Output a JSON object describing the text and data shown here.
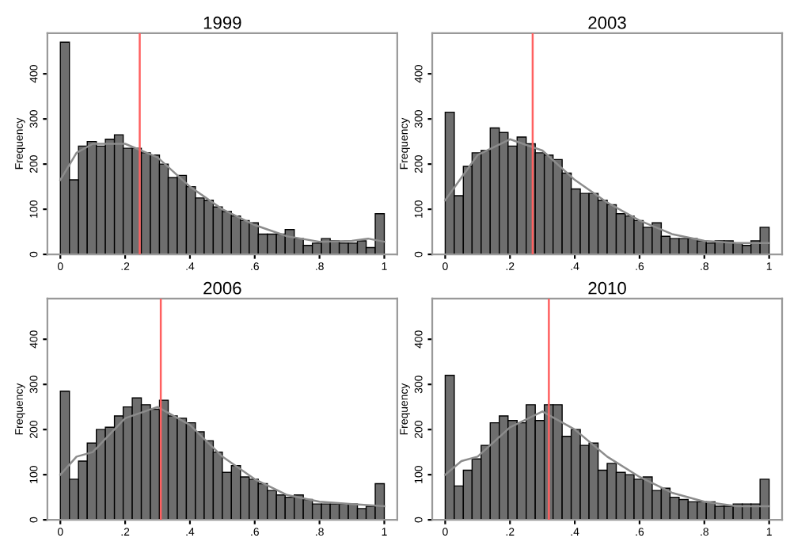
{
  "chart_data": [
    {
      "type": "histogram",
      "title": "1999",
      "ylabel": "Frequency",
      "xlim": [
        -0.04,
        1.04
      ],
      "ylim": [
        0,
        490
      ],
      "xticks": [
        0,
        {
          "value": 0.2,
          "label": ".2"
        },
        {
          "value": 0.4,
          "label": ".4"
        },
        {
          "value": 0.6,
          "label": ".6"
        },
        {
          "value": 0.8,
          "label": ".8"
        },
        1
      ],
      "yticks": [
        0,
        100,
        200,
        300,
        400
      ],
      "bins": [
        0,
        0.028,
        0.056,
        0.083,
        0.111,
        0.139,
        0.167,
        0.194,
        0.222,
        0.25,
        0.278,
        0.306,
        0.333,
        0.361,
        0.389,
        0.417,
        0.444,
        0.472,
        0.5,
        0.528,
        0.556,
        0.583,
        0.611,
        0.639,
        0.667,
        0.694,
        0.722,
        0.75,
        0.778,
        0.806,
        0.833,
        0.861,
        0.889,
        0.917,
        0.944,
        0.972,
        1
      ],
      "color": "#6e6e6e",
      "values": [
        470,
        165,
        240,
        250,
        240,
        255,
        265,
        235,
        235,
        225,
        220,
        200,
        170,
        175,
        150,
        125,
        120,
        105,
        95,
        85,
        75,
        70,
        45,
        45,
        45,
        55,
        35,
        20,
        25,
        35,
        30,
        25,
        25,
        30,
        15,
        90
      ],
      "series": [
        {
          "type": "line",
          "color": "#8c8c8c",
          "x": [
            0,
            0.05,
            0.1,
            0.2,
            0.3,
            0.4,
            0.5,
            0.6,
            0.7,
            0.8,
            0.9,
            0.95,
            1
          ],
          "values": [
            165,
            225,
            245,
            245,
            215,
            150,
            100,
            65,
            40,
            28,
            30,
            35,
            28
          ]
        }
      ],
      "ref_lines": [
        {
          "axis": "x",
          "value": 0.245,
          "color": "#ff6060"
        }
      ]
    },
    {
      "type": "histogram",
      "title": "2003",
      "ylabel": "Frequency",
      "xlim": [
        -0.04,
        1.04
      ],
      "ylim": [
        0,
        490
      ],
      "xticks": [
        0,
        {
          "value": 0.2,
          "label": ".2"
        },
        {
          "value": 0.4,
          "label": ".4"
        },
        {
          "value": 0.6,
          "label": ".6"
        },
        {
          "value": 0.8,
          "label": ".8"
        },
        1
      ],
      "yticks": [
        0,
        100,
        200,
        300,
        400
      ],
      "bins": [
        0,
        0.028,
        0.056,
        0.083,
        0.111,
        0.139,
        0.167,
        0.194,
        0.222,
        0.25,
        0.278,
        0.306,
        0.333,
        0.361,
        0.389,
        0.417,
        0.444,
        0.472,
        0.5,
        0.528,
        0.556,
        0.583,
        0.611,
        0.639,
        0.667,
        0.694,
        0.722,
        0.75,
        0.778,
        0.806,
        0.833,
        0.861,
        0.889,
        0.917,
        0.944,
        0.972,
        1
      ],
      "color": "#6e6e6e",
      "values": [
        315,
        130,
        195,
        225,
        230,
        280,
        270,
        240,
        260,
        245,
        225,
        220,
        210,
        180,
        145,
        135,
        135,
        120,
        110,
        90,
        85,
        75,
        60,
        70,
        40,
        35,
        35,
        35,
        30,
        25,
        30,
        30,
        25,
        20,
        30,
        60
      ],
      "series": [
        {
          "type": "line",
          "color": "#8c8c8c",
          "x": [
            0,
            0.05,
            0.1,
            0.2,
            0.3,
            0.4,
            0.5,
            0.6,
            0.7,
            0.8,
            0.9,
            1
          ],
          "values": [
            120,
            170,
            220,
            255,
            230,
            165,
            115,
            75,
            45,
            30,
            25,
            25
          ]
        }
      ],
      "ref_lines": [
        {
          "axis": "x",
          "value": 0.27,
          "color": "#ff6060"
        }
      ]
    },
    {
      "type": "histogram",
      "title": "2006",
      "ylabel": "Frequency",
      "xlim": [
        -0.04,
        1.04
      ],
      "ylim": [
        0,
        490
      ],
      "xticks": [
        0,
        {
          "value": 0.2,
          "label": ".2"
        },
        {
          "value": 0.4,
          "label": ".4"
        },
        {
          "value": 0.6,
          "label": ".6"
        },
        {
          "value": 0.8,
          "label": ".8"
        },
        1
      ],
      "yticks": [
        0,
        100,
        200,
        300,
        400
      ],
      "bins": [
        0,
        0.028,
        0.056,
        0.083,
        0.111,
        0.139,
        0.167,
        0.194,
        0.222,
        0.25,
        0.278,
        0.306,
        0.333,
        0.361,
        0.389,
        0.417,
        0.444,
        0.472,
        0.5,
        0.528,
        0.556,
        0.583,
        0.611,
        0.639,
        0.667,
        0.694,
        0.722,
        0.75,
        0.778,
        0.806,
        0.833,
        0.861,
        0.889,
        0.917,
        0.944,
        0.972,
        1
      ],
      "color": "#6e6e6e",
      "values": [
        285,
        90,
        130,
        170,
        200,
        205,
        230,
        250,
        270,
        255,
        245,
        265,
        230,
        225,
        215,
        195,
        175,
        150,
        105,
        120,
        95,
        90,
        80,
        65,
        55,
        50,
        55,
        45,
        35,
        35,
        35,
        35,
        35,
        25,
        30,
        80
      ],
      "series": [
        {
          "type": "line",
          "color": "#8c8c8c",
          "x": [
            0,
            0.05,
            0.1,
            0.2,
            0.3,
            0.4,
            0.5,
            0.6,
            0.7,
            0.8,
            0.9,
            1
          ],
          "values": [
            100,
            140,
            150,
            225,
            250,
            210,
            140,
            90,
            55,
            40,
            35,
            30
          ]
        }
      ],
      "ref_lines": [
        {
          "axis": "x",
          "value": 0.31,
          "color": "#ff6060"
        }
      ]
    },
    {
      "type": "histogram",
      "title": "2010",
      "ylabel": "Frequency",
      "xlim": [
        -0.04,
        1.04
      ],
      "ylim": [
        0,
        490
      ],
      "xticks": [
        0,
        {
          "value": 0.2,
          "label": ".2"
        },
        {
          "value": 0.4,
          "label": ".4"
        },
        {
          "value": 0.6,
          "label": ".6"
        },
        {
          "value": 0.8,
          "label": ".8"
        },
        1
      ],
      "yticks": [
        0,
        100,
        200,
        300,
        400
      ],
      "bins": [
        0,
        0.028,
        0.056,
        0.083,
        0.111,
        0.139,
        0.167,
        0.194,
        0.222,
        0.25,
        0.278,
        0.306,
        0.333,
        0.361,
        0.389,
        0.417,
        0.444,
        0.472,
        0.5,
        0.528,
        0.556,
        0.583,
        0.611,
        0.639,
        0.667,
        0.694,
        0.722,
        0.75,
        0.778,
        0.806,
        0.833,
        0.861,
        0.889,
        0.917,
        0.944,
        0.972,
        1
      ],
      "color": "#6e6e6e",
      "values": [
        320,
        75,
        110,
        135,
        165,
        215,
        230,
        220,
        215,
        255,
        220,
        255,
        255,
        185,
        200,
        165,
        170,
        110,
        125,
        105,
        100,
        90,
        95,
        65,
        70,
        50,
        45,
        40,
        40,
        40,
        30,
        30,
        35,
        35,
        35,
        90
      ],
      "series": [
        {
          "type": "line",
          "color": "#8c8c8c",
          "x": [
            0,
            0.05,
            0.1,
            0.2,
            0.3,
            0.4,
            0.5,
            0.6,
            0.7,
            0.8,
            0.9,
            1
          ],
          "values": [
            100,
            130,
            140,
            205,
            240,
            200,
            140,
            95,
            60,
            40,
            30,
            30
          ]
        }
      ],
      "ref_lines": [
        {
          "axis": "x",
          "value": 0.32,
          "color": "#ff6060"
        }
      ]
    }
  ]
}
